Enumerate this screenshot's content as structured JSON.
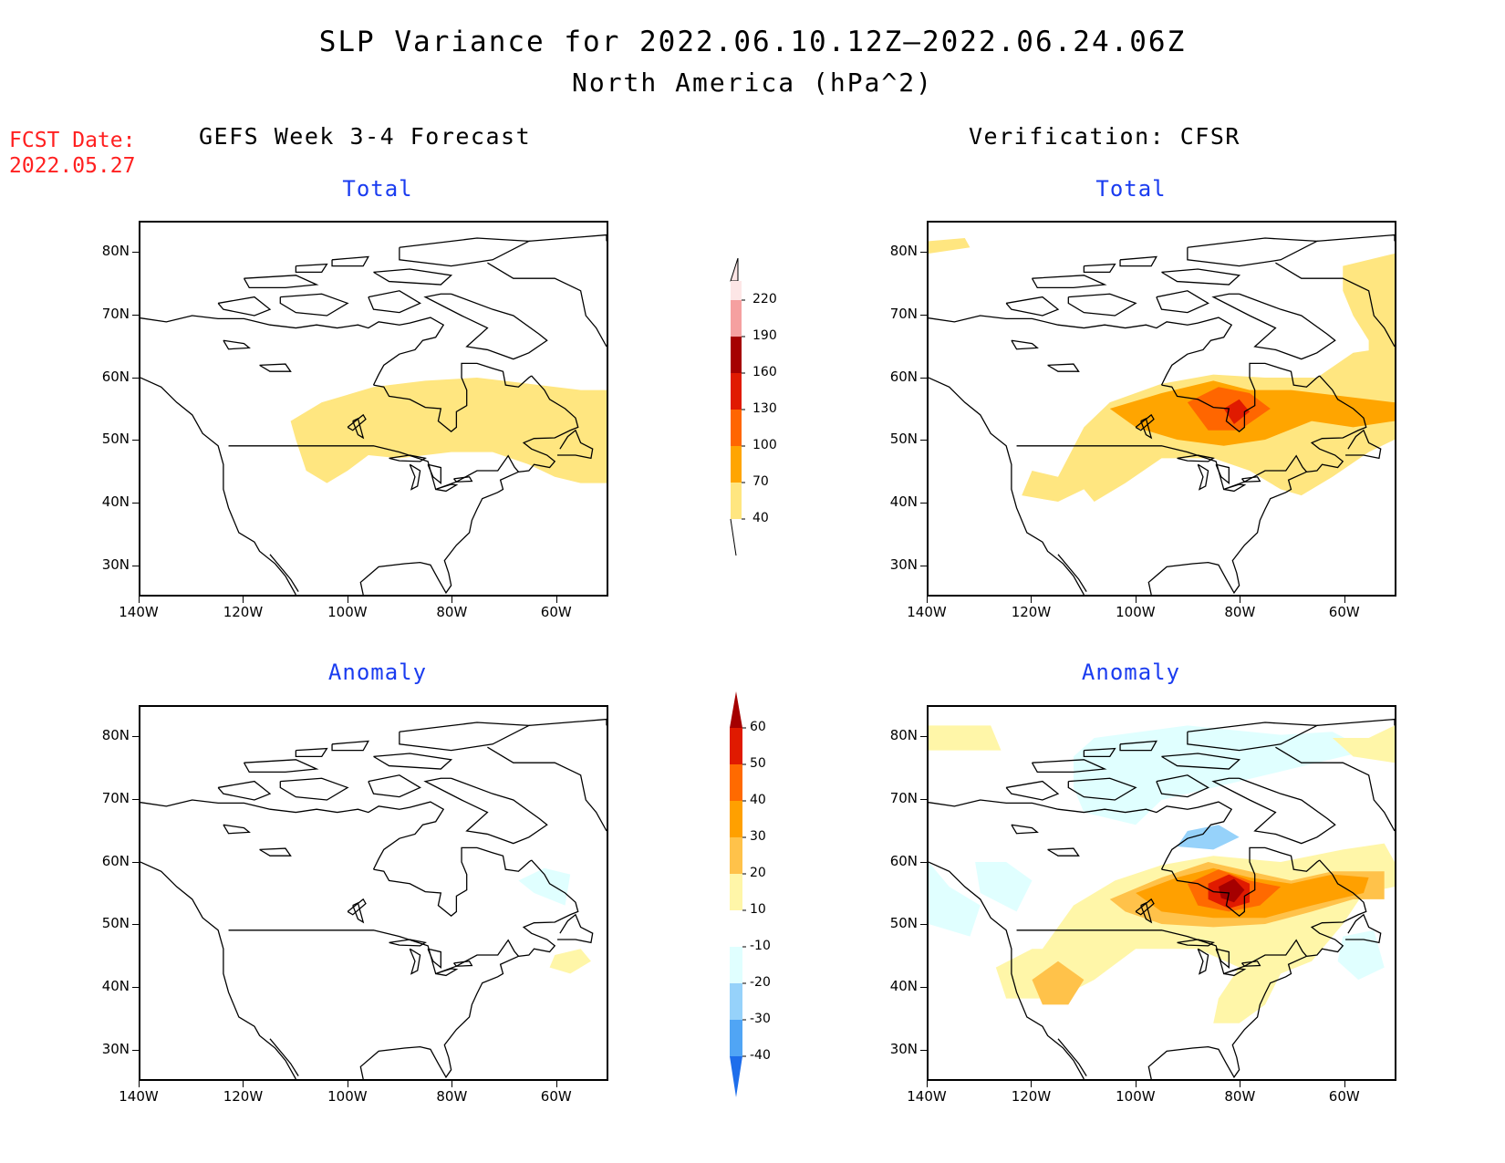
{
  "title": {
    "line1": "SLP Variance for 2022.06.10.12Z–2022.06.24.06Z",
    "line2": "North America (hPa^2)"
  },
  "fcst_date": {
    "label": "FCST Date:",
    "value": "2022.05.27"
  },
  "columns": {
    "left": "GEFS Week 3-4 Forecast",
    "right": "Verification: CFSR"
  },
  "panels": {
    "total_label": "Total",
    "anomaly_label": "Anomaly"
  },
  "axes": {
    "lat_labels": [
      "80N",
      "70N",
      "60N",
      "50N",
      "40N",
      "30N"
    ],
    "lon_labels": [
      "140W",
      "120W",
      "100W",
      "80W",
      "60W"
    ]
  },
  "colors": {
    "total": [
      "#ffe680",
      "#ffa500",
      "#ff6600",
      "#e01a00",
      "#a50000",
      "#f5a0a0",
      "#fde6e6"
    ],
    "anomaly_pos": [
      "#fff6a8",
      "#ffc24a",
      "#ffa000",
      "#ff6a00",
      "#e01a00",
      "#a50000"
    ],
    "anomaly_neg": [
      "#e0ffff",
      "#b4f0fa",
      "#96d2fa",
      "#50a5f5",
      "#1e6eeb"
    ]
  },
  "colorbar_total": {
    "levels": [
      "40",
      "70",
      "100",
      "130",
      "160",
      "190",
      "220"
    ]
  },
  "colorbar_anomaly": {
    "levels": [
      "60",
      "50",
      "40",
      "30",
      "20",
      "10",
      "-10",
      "-20",
      "-30",
      "-40"
    ]
  }
}
